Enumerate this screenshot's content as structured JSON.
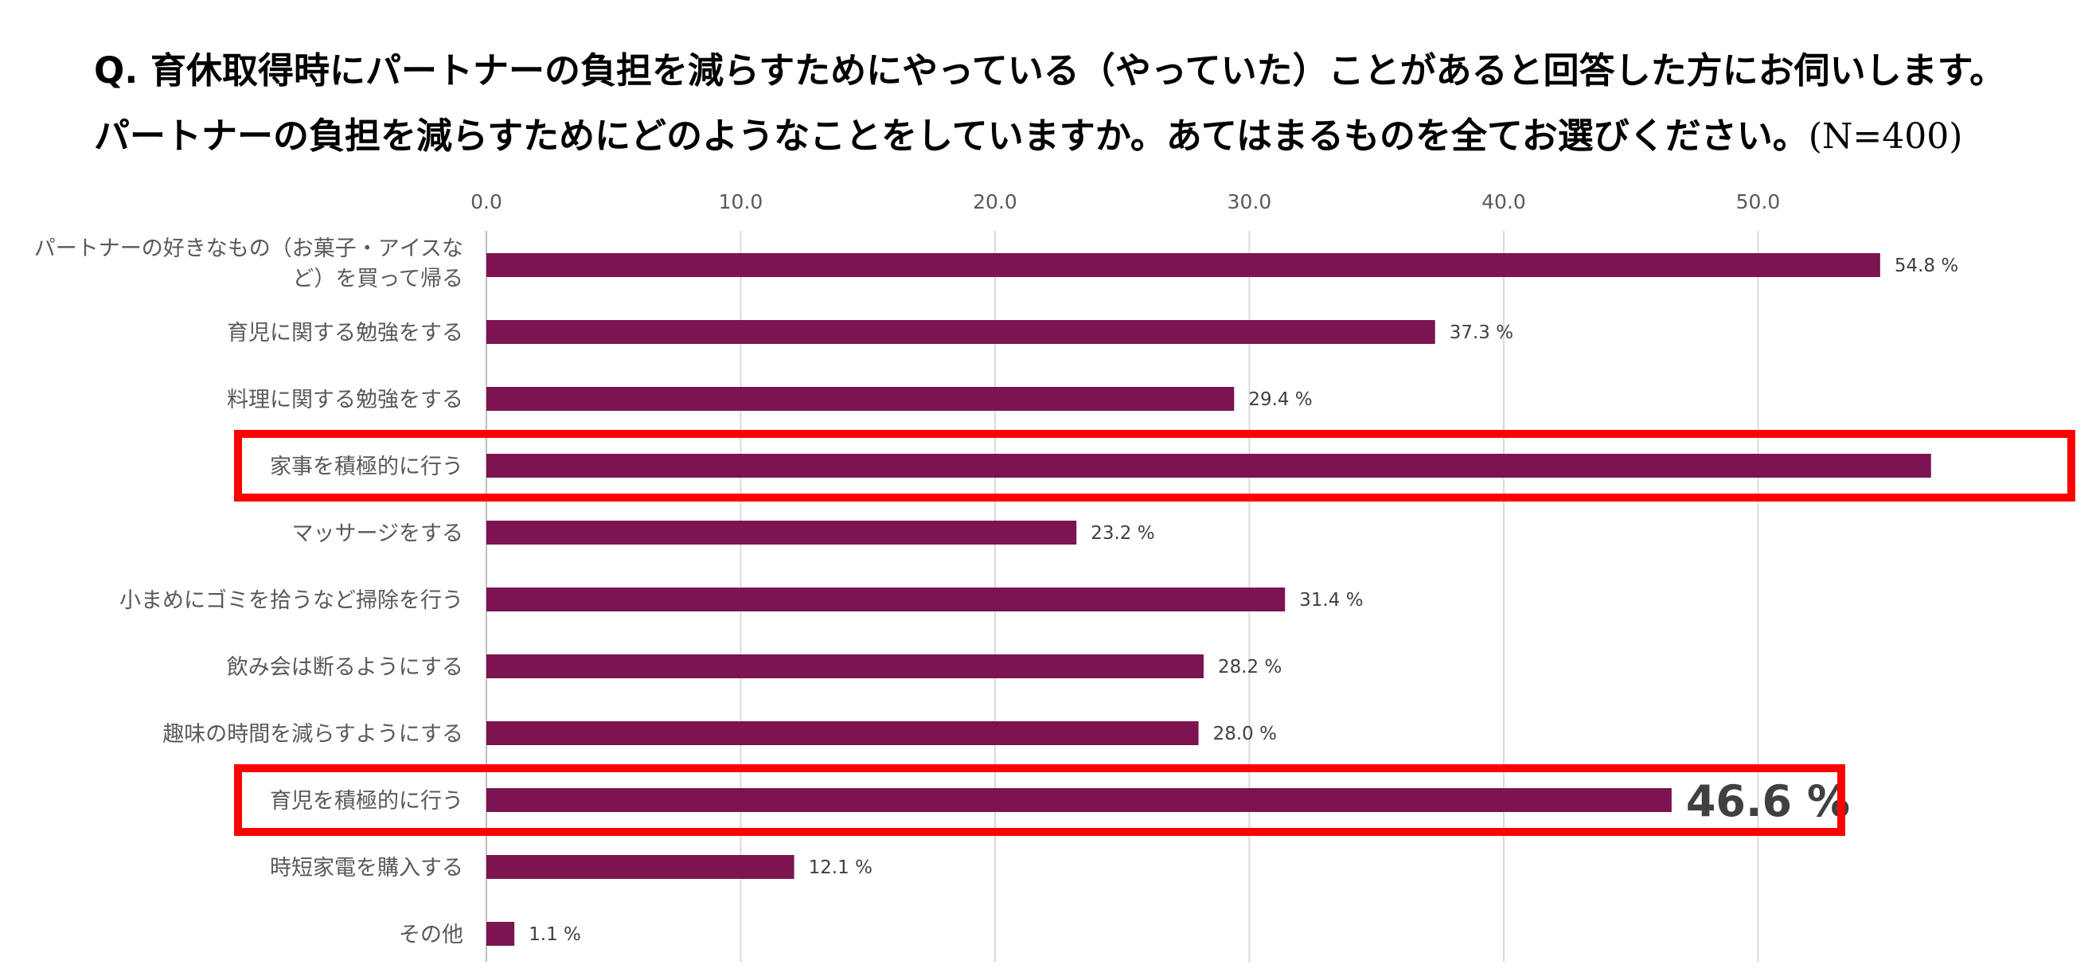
{
  "title": {
    "line1": "Q. 育休取得時にパートナーの負担を減らすためにやっている（やっていた）ことがあると回答した方にお伺いします。",
    "line2": "パートナーの負担を減らすためにどのようなことをしていますか。あてはまるものを全てお選びください。",
    "n_label": "(N=400)"
  },
  "colors": {
    "bar": "#7b1450",
    "highlight": "#ff0000",
    "grid": "#d9d9d9",
    "tick": "#595959"
  },
  "chart_data": {
    "type": "bar",
    "orientation": "horizontal",
    "xlim": [
      0,
      55
    ],
    "ticks": [
      "0.0",
      "10.0",
      "20.0",
      "30.0",
      "40.0",
      "50.0"
    ],
    "tick_values": [
      0,
      10,
      20,
      30,
      40,
      50
    ],
    "value_suffix": " %",
    "categories": [
      [
        "パートナーの好きなもの（お菓子・アイスな",
        "ど）を買って帰る"
      ],
      [
        "育児に関する勉強をする"
      ],
      [
        "料理に関する勉強をする"
      ],
      [
        "家事を積極的に行う"
      ],
      [
        "マッサージをする"
      ],
      [
        "小まめにゴミを拾うなど掃除を行う"
      ],
      [
        "飲み会は断るようにする"
      ],
      [
        "趣味の時間を減らすようにする"
      ],
      [
        "育児を積極的に行う"
      ],
      [
        "時短家電を購入する"
      ],
      [
        "その他"
      ]
    ],
    "values": [
      54.8,
      37.3,
      29.4,
      56.8,
      23.2,
      31.4,
      28.2,
      28.0,
      46.6,
      12.1,
      1.1
    ],
    "value_labels": [
      "54.8 %",
      "37.3 %",
      "29.4 %",
      "",
      "23.2 %",
      "31.4 %",
      "28.2 %",
      "28.0 %",
      "46.6 %",
      "12.1 %",
      "1.1 %"
    ],
    "highlighted_indices": [
      3,
      8
    ],
    "emphasized_label_index": 8
  }
}
